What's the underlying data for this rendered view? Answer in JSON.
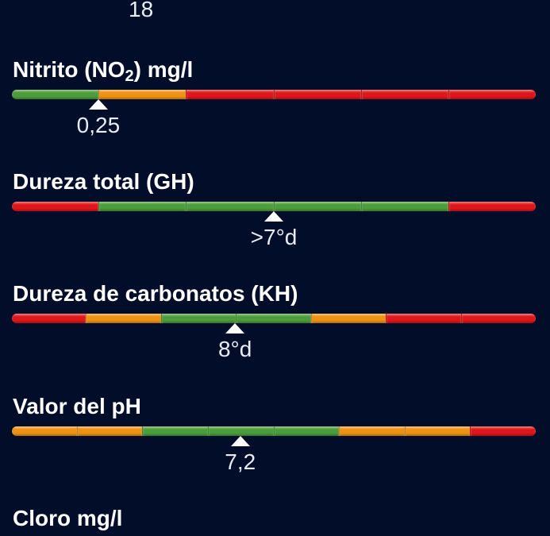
{
  "top_reading": "18",
  "colors": {
    "green": "#4c9e3a",
    "orange": "#ef9314",
    "red": "#e0171a",
    "background": "#020d2a",
    "text": "#ffffff"
  },
  "parameters": [
    {
      "title_main": "Nitrito (NO",
      "title_sub": "2",
      "title_suffix": ") mg/l",
      "segments": [
        "green",
        "orange",
        "red",
        "red",
        "red",
        "red"
      ],
      "marker_fraction": 0.165,
      "reading": "0,25"
    },
    {
      "title_main": "Dureza total (GH)",
      "title_sub": "",
      "title_suffix": "",
      "segments": [
        "red",
        "green",
        "green",
        "green",
        "green",
        "red"
      ],
      "marker_fraction": 0.5,
      "reading": ">7°d"
    },
    {
      "title_main": "Dureza de carbonatos (KH)",
      "title_sub": "",
      "title_suffix": "",
      "segments": [
        "red",
        "orange",
        "green",
        "green",
        "orange",
        "red",
        "red"
      ],
      "marker_fraction": 0.426,
      "reading": "8°d"
    },
    {
      "title_main": "Valor del pH",
      "title_sub": "",
      "title_suffix": "",
      "segments": [
        "orange",
        "orange",
        "green",
        "green",
        "green",
        "orange",
        "orange",
        "red"
      ],
      "marker_fraction": 0.436,
      "reading": "7,2"
    },
    {
      "title_main": "Cloro mg/l",
      "title_sub": "",
      "title_suffix": "",
      "segments": [],
      "marker_fraction": null,
      "reading": ""
    }
  ]
}
